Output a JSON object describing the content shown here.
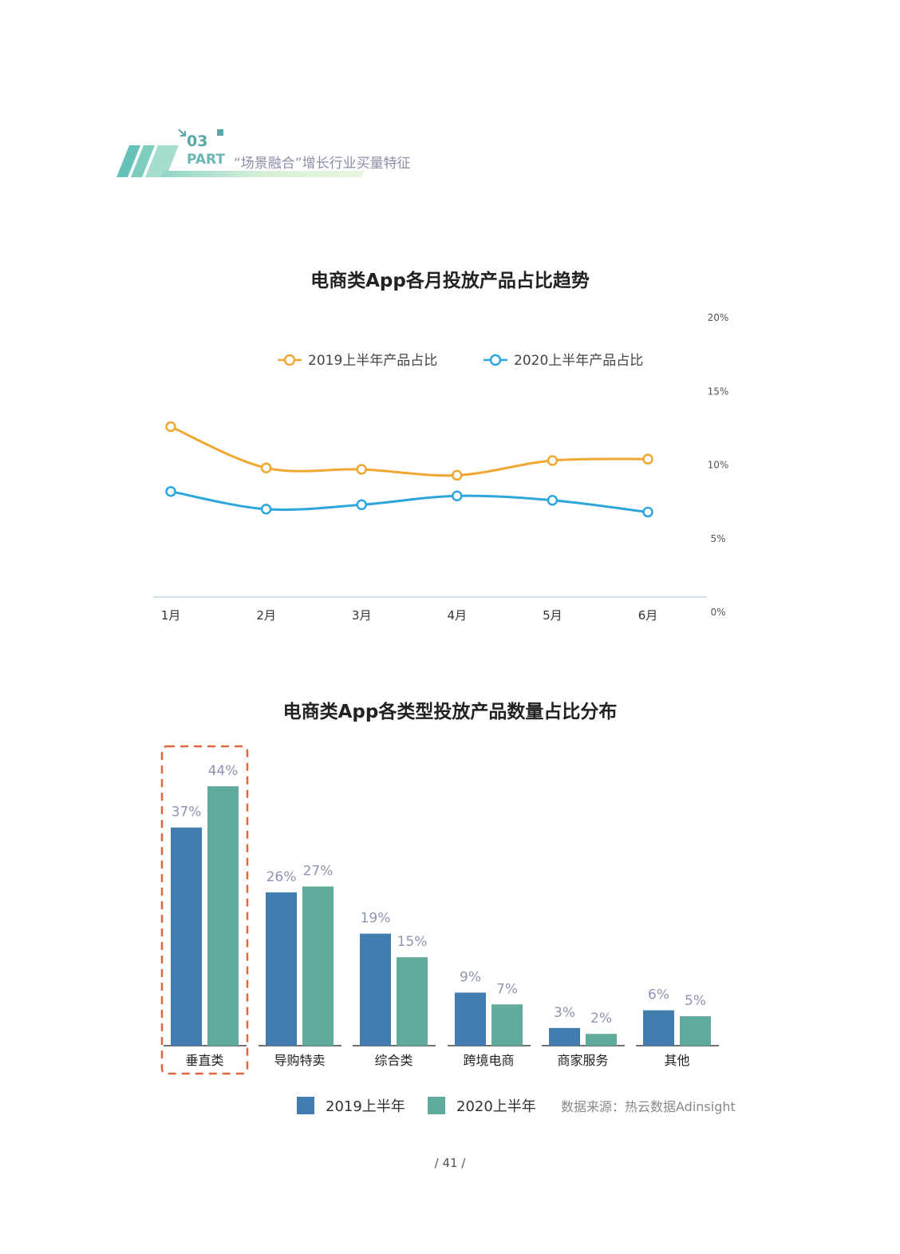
{
  "header": {
    "part_number": "03",
    "part_label": "PART",
    "part_title": "“场景融合”增长行业买量特征"
  },
  "page_number": "/ 41 /",
  "chart_data": [
    {
      "type": "line",
      "title": "电商类App各月投放产品占比趋势",
      "categories": [
        "1月",
        "2月",
        "3月",
        "4月",
        "5月",
        "6月"
      ],
      "y_ticks": [
        "0%",
        "5%",
        "10%",
        "15%",
        "20%"
      ],
      "ylim": [
        0,
        20
      ],
      "y_unit": "%",
      "legend_position": "top",
      "series": [
        {
          "name": "2019上半年产品占比",
          "color": "#f0a832",
          "values": [
            12.6,
            9.8,
            9.7,
            9.3,
            10.3,
            10.4
          ]
        },
        {
          "name": "2020上半年产品占比",
          "color": "#2ca6dc",
          "values": [
            8.2,
            7.0,
            7.3,
            7.9,
            7.6,
            6.8
          ]
        }
      ]
    },
    {
      "type": "bar",
      "title": "电商类App各类型投放产品数量占比分布",
      "categories": [
        "垂直类",
        "导购特卖",
        "综合类",
        "跨境电商",
        "商家服务",
        "其他"
      ],
      "ylim": [
        0,
        44
      ],
      "legend_position": "bottom",
      "highlight_category": "垂直类",
      "highlight_color": "#e0663d",
      "series": [
        {
          "name": "2019上半年",
          "color": "#437daf",
          "values": [
            37,
            26,
            19,
            9,
            3,
            6
          ],
          "labels": [
            "37%",
            "26%",
            "19%",
            "9%",
            "3%",
            "6%"
          ]
        },
        {
          "name": "2020上半年",
          "color": "#62ab9c",
          "values": [
            44,
            27,
            15,
            7,
            2,
            5
          ],
          "labels": [
            "44%",
            "27%",
            "15%",
            "7%",
            "2%",
            "5%"
          ]
        }
      ],
      "source_note": "数据来源：热云数据Adinsight"
    }
  ]
}
